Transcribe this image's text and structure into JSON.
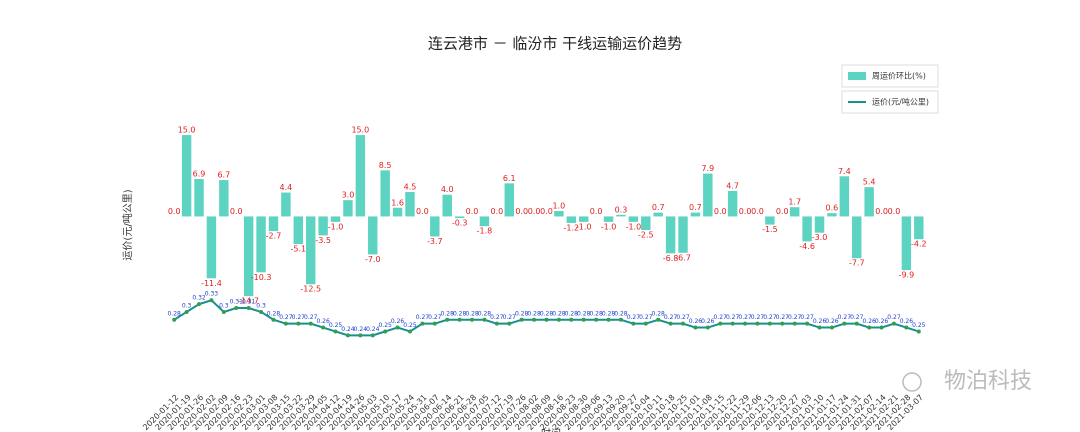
{
  "chart_data": {
    "type": "bar_line",
    "title": "连云港市 － 临汾市 干线运输运价趋势",
    "y_label": "运价(元/吨公里)",
    "x_label": "时间",
    "watermark": "物泊科技",
    "categories": [
      "2020-01-12",
      "2020-01-19",
      "2020-01-26",
      "2020-02-02",
      "2020-02-09",
      "2020-02-16",
      "2020-02-23",
      "2020-03-01",
      "2020-03-08",
      "2020-03-15",
      "2020-03-22",
      "2020-03-29",
      "2020-04-05",
      "2020-04-12",
      "2020-04-19",
      "2020-04-26",
      "2020-05-03",
      "2020-05-10",
      "2020-05-17",
      "2020-05-24",
      "2020-05-31",
      "2020-06-07",
      "2020-06-14",
      "2020-06-21",
      "2020-06-28",
      "2020-07-05",
      "2020-07-12",
      "2020-07-19",
      "2020-07-26",
      "2020-08-02",
      "2020-08-09",
      "2020-08-16",
      "2020-08-23",
      "2020-08-30",
      "2020-09-06",
      "2020-09-13",
      "2020-09-20",
      "2020-09-27",
      "2020-10-04",
      "2020-10-11",
      "2020-10-18",
      "2020-10-25",
      "2020-11-01",
      "2020-11-08",
      "2020-11-15",
      "2020-11-22",
      "2020-11-29",
      "2020-12-06",
      "2020-12-13",
      "2020-12-20",
      "2020-12-27",
      "2021-01-03",
      "2021-01-10",
      "2021-01-17",
      "2021-01-24",
      "2021-01-31",
      "2021-02-07",
      "2021-02-14",
      "2021-02-21",
      "2021-02-28",
      "2021-03-07"
    ],
    "ylim": [
      -32,
      27
    ],
    "y2lim": [
      0.1,
      0.92
    ],
    "series": [
      {
        "name": "周运价环比(%)",
        "color": "#5dd3c2",
        "values": [
          0,
          15,
          6.9,
          -11.4,
          6.7,
          0,
          -14.7,
          -10.3,
          -2.7,
          4.4,
          -5.1,
          -12.5,
          -3.5,
          -1,
          3,
          15,
          -7,
          8.5,
          1.6,
          4.5,
          0,
          -3.7,
          4,
          -0.3,
          0,
          -1.8,
          0,
          6.1,
          0,
          0,
          0,
          1,
          -1.2,
          -1,
          0,
          -1,
          0.3,
          -1,
          -2.5,
          0.7,
          -6.8,
          -6.7,
          0.7,
          7.9,
          0,
          4.7,
          0,
          0,
          -1.5,
          0,
          1.7,
          -4.6,
          -3,
          0.6,
          7.4,
          -7.7,
          5.4,
          0,
          0,
          -9.9,
          -4.2
        ],
        "value_labels": [
          "0.0",
          "15.0",
          "6.9",
          "-11.4",
          "6.7",
          "0.0",
          "-14.7",
          "-10.3",
          "-2.7",
          "4.4",
          "-5.1",
          "-12.5",
          "-3.5",
          "-1.0",
          "3.0",
          "15.0",
          "-7.0",
          "8.5",
          "1.6",
          "4.5",
          "0.0",
          "-3.7",
          "4.0",
          "-0.3",
          "0.0",
          "-1.8",
          "0.0",
          "6.1",
          "0.0",
          "0.0",
          "0.0",
          "1.0",
          "-1.2",
          "-1.0",
          "0.0",
          "-1.0",
          "0.3",
          "-1.0",
          "-2.5",
          "0.7",
          "-6.8",
          "-6.7",
          "0.7",
          "7.9",
          "0.0",
          "4.7",
          "0.0",
          "0.0",
          "-1.5",
          "0.0",
          "1.7",
          "-4.6",
          "-3.0",
          "0.6",
          "7.4",
          "-7.7",
          "5.4",
          "0.0",
          "0.0",
          "-9.9",
          "-4.2"
        ]
      },
      {
        "name": "运价(元/吨公里)",
        "color": "#1a8f8f",
        "axis": "y2",
        "values": [
          0.28,
          0.3,
          0.32,
          0.33,
          0.3,
          0.31,
          0.31,
          0.3,
          0.28,
          0.27,
          0.27,
          0.27,
          0.26,
          0.25,
          0.24,
          0.24,
          0.24,
          0.25,
          0.26,
          0.25,
          0.27,
          0.27,
          0.28,
          0.28,
          0.28,
          0.28,
          0.27,
          0.27,
          0.28,
          0.28,
          0.28,
          0.28,
          0.28,
          0.28,
          0.28,
          0.28,
          0.28,
          0.27,
          0.27,
          0.28,
          0.27,
          0.27,
          0.26,
          0.26,
          0.27,
          0.27,
          0.27,
          0.27,
          0.27,
          0.27,
          0.27,
          0.27,
          0.26,
          0.26,
          0.27,
          0.27,
          0.26,
          0.26,
          0.27,
          0.26,
          0.25
        ]
      }
    ]
  }
}
